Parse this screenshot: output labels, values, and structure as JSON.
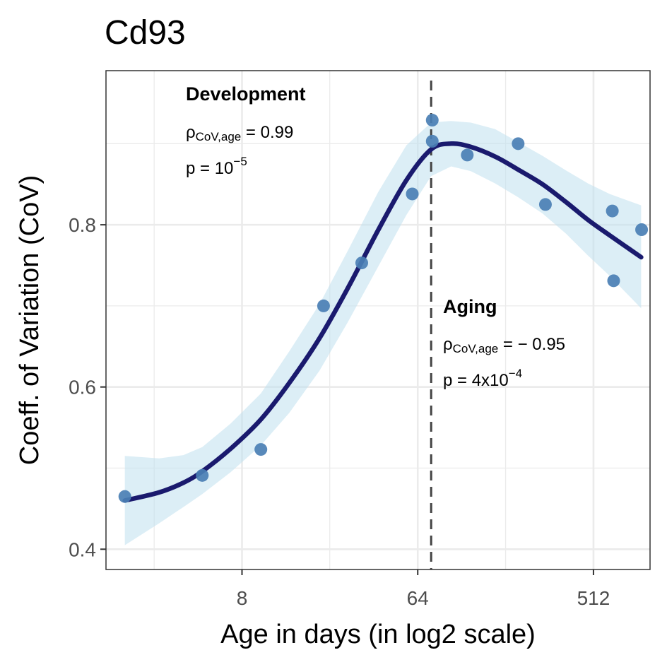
{
  "chart_data": {
    "type": "scatter",
    "title": "Cd93",
    "xlabel": "Age in days (in log2 scale)",
    "ylabel": "Coeff. of Variation (CoV)",
    "x_scale": "log2",
    "xlim": [
      1.6,
      1000
    ],
    "ylim": [
      0.375,
      0.99
    ],
    "x_ticks": [
      8,
      64,
      512
    ],
    "x_tick_labels": [
      "8",
      "64",
      "512"
    ],
    "y_ticks": [
      0.4,
      0.6,
      0.8
    ],
    "y_tick_labels": [
      "0.4",
      "0.6",
      "0.8"
    ],
    "x_minor_gridlines": [
      2.83,
      22.6,
      181,
      1448
    ],
    "y_minor_gridlines": [
      0.5,
      0.7,
      0.9
    ],
    "grid": true,
    "vline_x": 75,
    "points": [
      {
        "x": 2,
        "y": 0.465
      },
      {
        "x": 5,
        "y": 0.491
      },
      {
        "x": 10,
        "y": 0.523
      },
      {
        "x": 21,
        "y": 0.7
      },
      {
        "x": 33,
        "y": 0.753
      },
      {
        "x": 60,
        "y": 0.838
      },
      {
        "x": 76,
        "y": 0.903
      },
      {
        "x": 76,
        "y": 0.929
      },
      {
        "x": 115,
        "y": 0.886
      },
      {
        "x": 210,
        "y": 0.9
      },
      {
        "x": 290,
        "y": 0.825
      },
      {
        "x": 640,
        "y": 0.817
      },
      {
        "x": 650,
        "y": 0.731
      },
      {
        "x": 905,
        "y": 0.794
      }
    ],
    "fit": {
      "x": [
        2,
        3,
        4,
        5,
        7,
        10,
        14,
        20,
        28,
        40,
        56,
        75,
        95,
        120,
        160,
        210,
        280,
        370,
        480,
        620,
        900
      ],
      "y": [
        0.46,
        0.47,
        0.482,
        0.496,
        0.524,
        0.56,
        0.605,
        0.66,
        0.722,
        0.793,
        0.855,
        0.893,
        0.9,
        0.896,
        0.884,
        0.868,
        0.85,
        0.828,
        0.806,
        0.787,
        0.76
      ],
      "ci_lower": [
        0.405,
        0.432,
        0.452,
        0.468,
        0.495,
        0.528,
        0.568,
        0.62,
        0.68,
        0.748,
        0.812,
        0.86,
        0.872,
        0.866,
        0.851,
        0.834,
        0.814,
        0.789,
        0.762,
        0.737,
        0.697
      ],
      "ci_upper": [
        0.515,
        0.512,
        0.516,
        0.526,
        0.555,
        0.592,
        0.644,
        0.702,
        0.768,
        0.84,
        0.898,
        0.926,
        0.928,
        0.926,
        0.918,
        0.902,
        0.885,
        0.867,
        0.851,
        0.838,
        0.824
      ]
    },
    "colors": {
      "points": "#4a7fb4",
      "fit_line": "#1a1a6e",
      "ci_band": "#bfe0ef",
      "vline": "#444444",
      "grid": "#ebebeb",
      "panel_border": "#333333"
    },
    "annotations": {
      "development": {
        "heading": "Development",
        "rho_symbol": "ρ",
        "rho_subscript": "CoV,age",
        "rho_value": " = 0.99",
        "p_prefix": "p = 10",
        "p_exponent": "−5",
        "p_suffix": ""
      },
      "aging": {
        "heading": "Aging",
        "rho_symbol": "ρ",
        "rho_subscript": "CoV,age",
        "rho_value": " = − 0.95",
        "p_prefix": "p = 4x10",
        "p_exponent": "−4",
        "p_suffix": ""
      }
    }
  }
}
